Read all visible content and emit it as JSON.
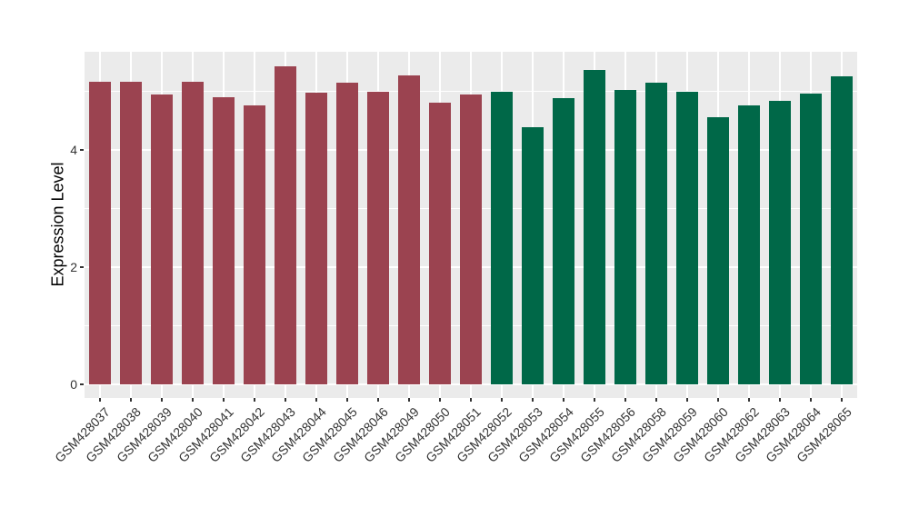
{
  "figure": {
    "background_color": "#FFFFFF",
    "panel_background_color": "#EBEBEB",
    "grid_color": "#FFFFFF",
    "axis_text_color": "#333333",
    "axis_title_color": "#000000"
  },
  "chart_data": {
    "type": "bar",
    "title": "",
    "xlabel": "",
    "ylabel": "Expression Level",
    "y_major_ticks": [
      0,
      2,
      4
    ],
    "y_minor_ticks": [
      1,
      3,
      5
    ],
    "ylim": [
      -0.23,
      5.67
    ],
    "grid": true,
    "legend_position": "none",
    "groups": [
      {
        "name": "red-group",
        "color": "#9B4350"
      },
      {
        "name": "green-group",
        "color": "#006848"
      }
    ],
    "samples": [
      {
        "label": "GSM428037",
        "value": 5.17,
        "group": 0
      },
      {
        "label": "GSM428038",
        "value": 5.16,
        "group": 0
      },
      {
        "label": "GSM428039",
        "value": 4.94,
        "group": 0
      },
      {
        "label": "GSM428040",
        "value": 5.16,
        "group": 0
      },
      {
        "label": "GSM428041",
        "value": 4.9,
        "group": 0
      },
      {
        "label": "GSM428042",
        "value": 4.76,
        "group": 0
      },
      {
        "label": "GSM428043",
        "value": 5.42,
        "group": 0
      },
      {
        "label": "GSM428044",
        "value": 4.98,
        "group": 0
      },
      {
        "label": "GSM428045",
        "value": 5.14,
        "group": 0
      },
      {
        "label": "GSM428046",
        "value": 4.99,
        "group": 0
      },
      {
        "label": "GSM428049",
        "value": 5.27,
        "group": 0
      },
      {
        "label": "GSM428050",
        "value": 4.8,
        "group": 0
      },
      {
        "label": "GSM428051",
        "value": 4.94,
        "group": 0
      },
      {
        "label": "GSM428052",
        "value": 5.0,
        "group": 1
      },
      {
        "label": "GSM428053",
        "value": 4.39,
        "group": 1
      },
      {
        "label": "GSM428054",
        "value": 4.89,
        "group": 1
      },
      {
        "label": "GSM428055",
        "value": 5.37,
        "group": 1
      },
      {
        "label": "GSM428056",
        "value": 5.02,
        "group": 1
      },
      {
        "label": "GSM428058",
        "value": 5.15,
        "group": 1
      },
      {
        "label": "GSM428059",
        "value": 4.99,
        "group": 1
      },
      {
        "label": "GSM428060",
        "value": 4.56,
        "group": 1
      },
      {
        "label": "GSM428062",
        "value": 4.76,
        "group": 1
      },
      {
        "label": "GSM428063",
        "value": 4.83,
        "group": 1
      },
      {
        "label": "GSM428064",
        "value": 4.96,
        "group": 1
      },
      {
        "label": "GSM428065",
        "value": 5.25,
        "group": 1
      }
    ]
  }
}
